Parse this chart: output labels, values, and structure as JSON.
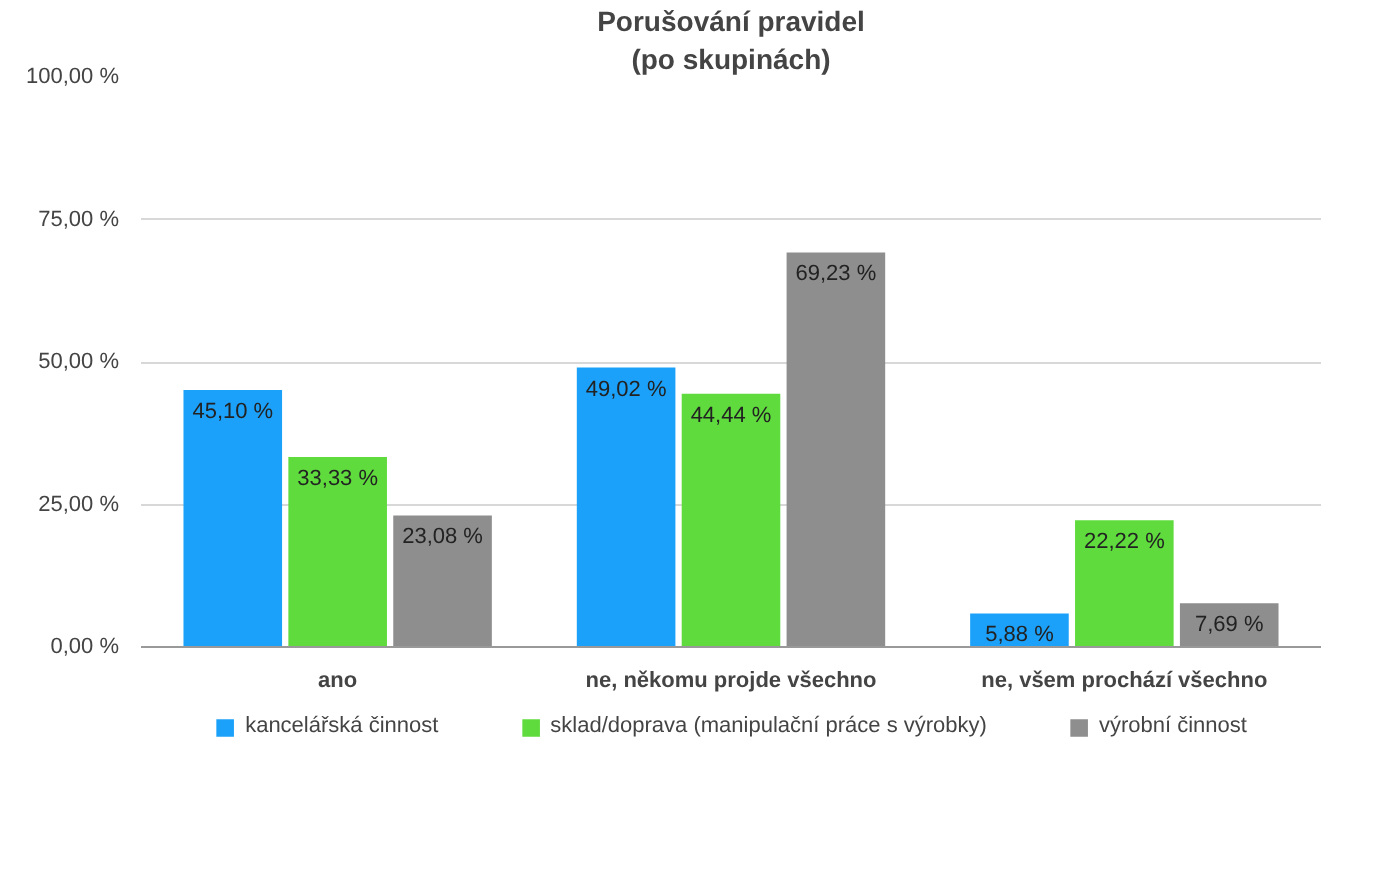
{
  "chart_data": {
    "type": "bar",
    "title": "Porušování pravidel",
    "subtitle": "(po skupinách)",
    "categories": [
      "ano",
      "ne, někomu projde všechno",
      "ne, všem prochází všechno"
    ],
    "series": [
      {
        "name": "kancelářská činnost",
        "color": "#1ba1fa",
        "values": [
          45.1,
          49.02,
          5.88
        ],
        "value_labels": [
          "45,10 %",
          "49,02 %",
          "5,88 %"
        ]
      },
      {
        "name": "sklad/doprava (manipulační práce s výrobky)",
        "color": "#5fdb3d",
        "values": [
          33.33,
          44.44,
          22.22
        ],
        "value_labels": [
          "33,33 %",
          "44,44 %",
          "22,22 %"
        ]
      },
      {
        "name": "výrobní činnost",
        "color": "#8e8e8e",
        "values": [
          23.08,
          69.23,
          7.69
        ],
        "value_labels": [
          "23,08 %",
          "69,23 %",
          "7,69 %"
        ]
      }
    ],
    "ylim": [
      0,
      100
    ],
    "yticks": [
      {
        "value": 0,
        "label": "0,00 %"
      },
      {
        "value": 25,
        "label": "25,00 %"
      },
      {
        "value": 50,
        "label": "50,00 %"
      },
      {
        "value": 75,
        "label": "75,00 %"
      },
      {
        "value": 100,
        "label": "100,00 %"
      }
    ],
    "grid": "y",
    "legend": "bottom"
  }
}
